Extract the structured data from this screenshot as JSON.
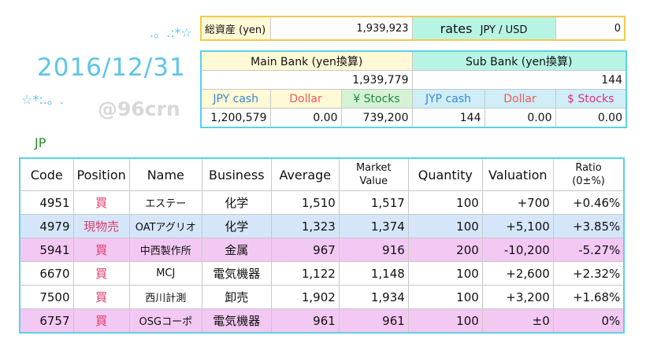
{
  "summary": {
    "total_label": "総資産 (yen)",
    "total_value": "1,939,923",
    "rates_label": "rates",
    "rates_pair": "JPY / USD",
    "rates_value": "0"
  },
  "date": "2016/12/31",
  "watermark": "@96crn",
  "deco_top": ".。.:*☆",
  "deco_left": "☆*:.。.",
  "section_label": "JP",
  "bank": {
    "main_title": "Main Bank (yen換算)",
    "sub_title": "Sub Bank (yen換算)",
    "main_total": "1,939,779",
    "sub_total": "144",
    "headers": [
      "JPY cash",
      "Dollar",
      "¥ Stocks",
      "JYP cash",
      "Dollar",
      "$ Stocks"
    ],
    "values": [
      "1,200,579",
      "0.00",
      "739,200",
      "144",
      "0.00",
      "0.00"
    ]
  },
  "holdings": {
    "headers": {
      "code": "Code",
      "position": "Position",
      "name": "Name",
      "business": "Business",
      "average": "Average",
      "market_value_1": "Market",
      "market_value_2": "Value",
      "quantity": "Quantity",
      "valuation": "Valuation",
      "ratio_1": "Ratio",
      "ratio_2": "(0±%)"
    },
    "rows": [
      {
        "code": "4951",
        "position": "買",
        "name": "エステー",
        "business": "化学",
        "average": "1,510",
        "market": "1,517",
        "quantity": "100",
        "valuation": "+700",
        "ratio": "+0.46%"
      },
      {
        "code": "4979",
        "position": "現物売",
        "name": "OATアグリオ",
        "business": "化学",
        "average": "1,323",
        "market": "1,374",
        "quantity": "100",
        "valuation": "+5,100",
        "ratio": "+3.85%"
      },
      {
        "code": "5941",
        "position": "買",
        "name": "中西製作所",
        "business": "金属",
        "average": "967",
        "market": "916",
        "quantity": "200",
        "valuation": "-10,200",
        "ratio": "-5.27%"
      },
      {
        "code": "6670",
        "position": "買",
        "name": "MCJ",
        "business": "電気機器",
        "average": "1,122",
        "market": "1,148",
        "quantity": "100",
        "valuation": "+2,600",
        "ratio": "+2.32%"
      },
      {
        "code": "7500",
        "position": "買",
        "name": "西川計測",
        "business": "卸売",
        "average": "1,902",
        "market": "1,934",
        "quantity": "100",
        "valuation": "+3,200",
        "ratio": "+1.68%"
      },
      {
        "code": "6757",
        "position": "買",
        "name": "OSGコーポ",
        "business": "電気機器",
        "average": "961",
        "market": "961",
        "quantity": "100",
        "valuation": "±0",
        "ratio": "0%"
      }
    ]
  }
}
